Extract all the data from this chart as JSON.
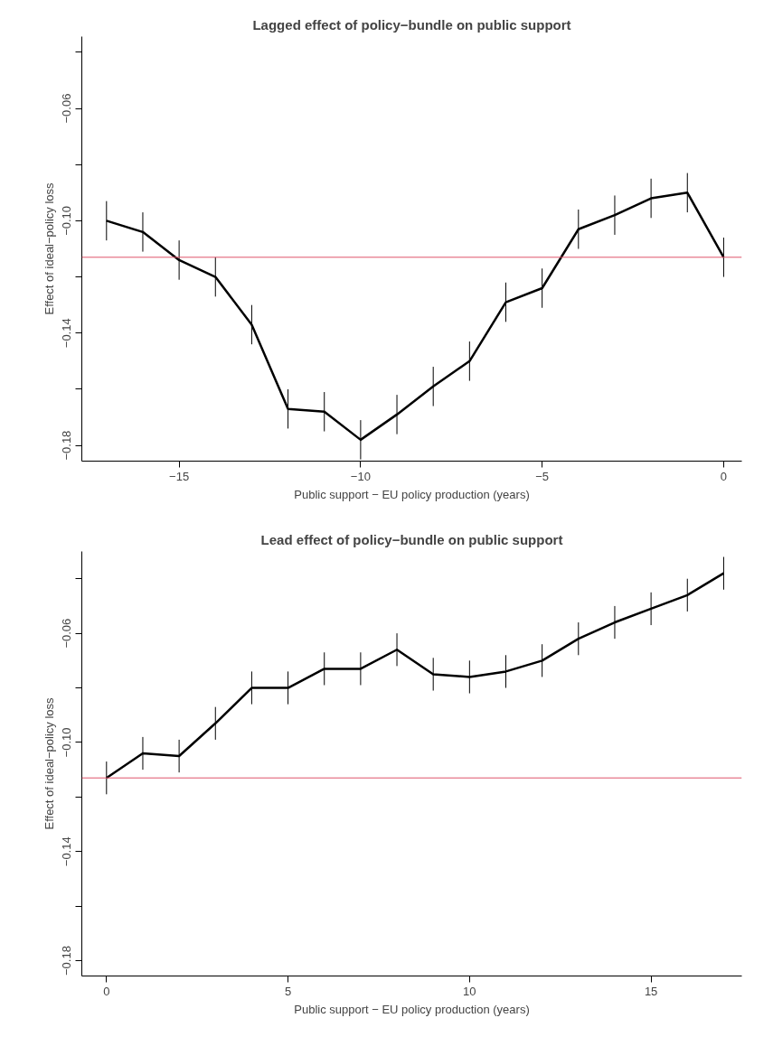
{
  "chart_data": [
    {
      "type": "line",
      "title": "Lagged effect of policy−bundle on public support",
      "xlabel": "Public support − EU policy production (years)",
      "ylabel": "Effect of ideal−policy loss",
      "x": [
        -17,
        -16,
        -15,
        -14,
        -13,
        -12,
        -11,
        -10,
        -9,
        -8,
        -7,
        -6,
        -5,
        -4,
        -3,
        -2,
        -1,
        0
      ],
      "series": [
        {
          "color": "#000000",
          "values": [
            -0.1,
            -0.104,
            -0.114,
            -0.12,
            -0.137,
            -0.167,
            -0.168,
            -0.178,
            -0.169,
            -0.159,
            -0.15,
            -0.129,
            -0.124,
            -0.103,
            -0.098,
            -0.092,
            -0.09,
            -0.113
          ],
          "errors": [
            0.007,
            0.007,
            0.007,
            0.007,
            0.007,
            0.007,
            0.007,
            0.007,
            0.007,
            0.007,
            0.007,
            0.007,
            0.007,
            0.007,
            0.007,
            0.007,
            0.007,
            0.007
          ]
        }
      ],
      "xlim": [
        -17.68,
        0.5
      ],
      "xticks": [
        {
          "value": -15,
          "label": "−15"
        },
        {
          "value": -10,
          "label": "−10"
        },
        {
          "value": -5,
          "label": "−5"
        },
        0
      ],
      "ylim": [
        -0.1856,
        -0.0344
      ],
      "yticks": [
        {
          "value": -0.04,
          "label": null
        },
        {
          "value": -0.06,
          "label": "−0.06"
        },
        {
          "value": -0.08,
          "label": null
        },
        {
          "value": -0.1,
          "label": "−0.10"
        },
        {
          "value": -0.12,
          "label": null
        },
        {
          "value": -0.14,
          "label": "−0.14"
        },
        {
          "value": -0.16,
          "label": null
        },
        {
          "value": -0.18,
          "label": "−0.18"
        }
      ],
      "ref_lines": [
        {
          "axis": "y",
          "value": -0.113,
          "color": "#df536b"
        }
      ],
      "grid": false,
      "marker": "none",
      "line_style": "solid"
    },
    {
      "type": "line",
      "title": "Lead effect of policy−bundle on public support",
      "xlabel": "Public support − EU policy production (years)",
      "ylabel": "Effect of ideal−policy loss",
      "x": [
        0,
        1,
        2,
        3,
        4,
        5,
        6,
        7,
        8,
        9,
        10,
        11,
        12,
        13,
        14,
        15,
        16,
        17
      ],
      "series": [
        {
          "color": "#000000",
          "values": [
            -0.113,
            -0.104,
            -0.105,
            -0.093,
            -0.08,
            -0.08,
            -0.073,
            -0.073,
            -0.066,
            -0.075,
            -0.076,
            -0.074,
            -0.07,
            -0.062,
            -0.056,
            -0.051,
            -0.046,
            -0.038
          ],
          "errors": [
            0.006,
            0.006,
            0.006,
            0.006,
            0.006,
            0.006,
            0.006,
            0.006,
            0.006,
            0.006,
            0.006,
            0.006,
            0.006,
            0.006,
            0.006,
            0.006,
            0.006,
            0.006
          ]
        }
      ],
      "xlim": [
        -0.68,
        17.5
      ],
      "xticks": [
        0,
        5,
        10,
        15
      ],
      "ylim": [
        -0.1856,
        -0.03
      ],
      "yticks": [
        {
          "value": -0.04,
          "label": null
        },
        {
          "value": -0.06,
          "label": "−0.06"
        },
        {
          "value": -0.08,
          "label": null
        },
        {
          "value": -0.1,
          "label": "−0.10"
        },
        {
          "value": -0.12,
          "label": null
        },
        {
          "value": -0.14,
          "label": "−0.14"
        },
        {
          "value": -0.16,
          "label": null
        },
        {
          "value": -0.18,
          "label": "−0.18"
        }
      ],
      "ref_lines": [
        {
          "axis": "y",
          "value": -0.113,
          "color": "#df536b"
        }
      ],
      "grid": false,
      "marker": "none",
      "line_style": "solid"
    }
  ]
}
